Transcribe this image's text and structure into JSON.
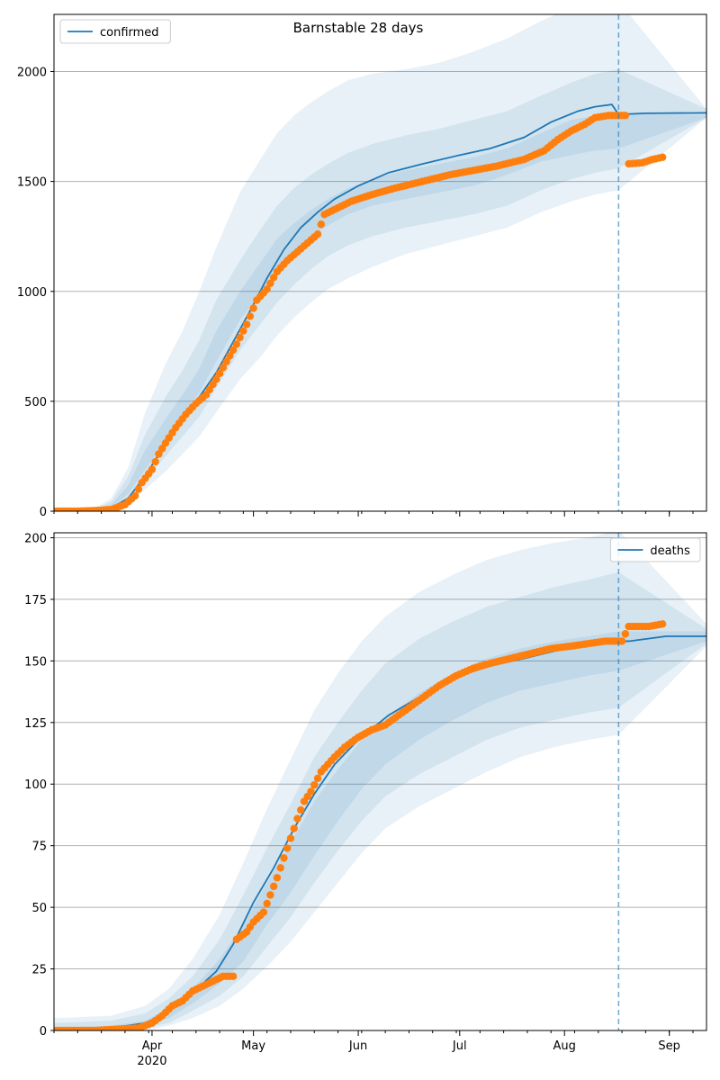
{
  "figure": {
    "title": "Barnstable 28 days"
  },
  "colors": {
    "model_line": "#1f77b4",
    "observed_points": "#ff7f0e",
    "band": "#1f77b4",
    "grid": "#b0b0b0",
    "axis": "#000000"
  },
  "x_axis": {
    "start": "2020-03-03",
    "end": "2020-09-12",
    "ticks": [
      {
        "date": "2020-04-01",
        "label": "Apr",
        "sublabel": "2020"
      },
      {
        "date": "2020-05-01",
        "label": "May",
        "sublabel": ""
      },
      {
        "date": "2020-06-01",
        "label": "Jun",
        "sublabel": ""
      },
      {
        "date": "2020-07-01",
        "label": "Jul",
        "sublabel": ""
      },
      {
        "date": "2020-08-01",
        "label": "Aug",
        "sublabel": ""
      },
      {
        "date": "2020-09-01",
        "label": "Sep",
        "sublabel": ""
      }
    ],
    "forecast_start": "2020-08-17"
  },
  "chart_data": [
    {
      "type": "line",
      "legend": {
        "label": "confirmed",
        "placement": "top-left"
      },
      "ylim": [
        0,
        2260
      ],
      "y_ticks": [
        0,
        500,
        1000,
        1500,
        2000
      ],
      "grid": true,
      "model_line": [
        [
          "2020-03-03",
          0
        ],
        [
          "2020-03-15",
          3
        ],
        [
          "2020-03-20",
          15
        ],
        [
          "2020-03-25",
          60
        ],
        [
          "2020-03-30",
          160
        ],
        [
          "2020-04-05",
          310
        ],
        [
          "2020-04-10",
          420
        ],
        [
          "2020-04-15",
          520
        ],
        [
          "2020-04-20",
          630
        ],
        [
          "2020-04-25",
          770
        ],
        [
          "2020-05-01",
          940
        ],
        [
          "2020-05-05",
          1060
        ],
        [
          "2020-05-10",
          1190
        ],
        [
          "2020-05-15",
          1290
        ],
        [
          "2020-05-20",
          1360
        ],
        [
          "2020-05-25",
          1420
        ],
        [
          "2020-06-01",
          1480
        ],
        [
          "2020-06-10",
          1540
        ],
        [
          "2020-06-20",
          1580
        ],
        [
          "2020-07-01",
          1620
        ],
        [
          "2020-07-10",
          1650
        ],
        [
          "2020-07-20",
          1700
        ],
        [
          "2020-07-28",
          1770
        ],
        [
          "2020-08-05",
          1820
        ],
        [
          "2020-08-10",
          1840
        ],
        [
          "2020-08-15",
          1850
        ],
        [
          "2020-08-17",
          1805
        ],
        [
          "2020-08-25",
          1810
        ],
        [
          "2020-09-12",
          1812
        ]
      ],
      "bands": {
        "inner": [
          [
            1,
            5,
            30,
            120,
            280,
            420,
            530,
            650,
            820,
            1000,
            1130,
            1240,
            1310,
            1370,
            1420,
            1470,
            1510,
            1550,
            1580,
            1610,
            1650,
            1720,
            1780,
            1800,
            1810,
            1800
          ],
          [
            1,
            3,
            18,
            80,
            190,
            320,
            430,
            540,
            680,
            870,
            990,
            1100,
            1180,
            1250,
            1300,
            1350,
            1390,
            1420,
            1450,
            1480,
            1530,
            1590,
            1620,
            1640,
            1650,
            1790
          ]
        ],
        "middle": [
          [
            2,
            8,
            45,
            160,
            350,
            520,
            640,
            780,
            960,
            1140,
            1280,
            1390,
            1470,
            1530,
            1580,
            1630,
            1670,
            1710,
            1740,
            1780,
            1820,
            1890,
            1950,
            1990,
            2010,
            1830
          ],
          [
            0,
            2,
            10,
            55,
            140,
            250,
            340,
            430,
            560,
            730,
            850,
            950,
            1030,
            1100,
            1160,
            1210,
            1250,
            1290,
            1320,
            1350,
            1390,
            1460,
            1510,
            1540,
            1560,
            1790
          ]
        ],
        "outer": [
          [
            3,
            12,
            60,
            200,
            450,
            670,
            820,
            1000,
            1200,
            1450,
            1600,
            1720,
            1800,
            1860,
            1910,
            1960,
            1990,
            2010,
            2040,
            2090,
            2150,
            2230,
            2290,
            2310,
            2320,
            1830
          ],
          [
            0,
            1,
            6,
            35,
            100,
            180,
            260,
            340,
            450,
            600,
            700,
            800,
            880,
            950,
            1010,
            1060,
            1110,
            1170,
            1210,
            1250,
            1290,
            1360,
            1410,
            1440,
            1460,
            1790
          ]
        ]
      },
      "band_dates": [
        "2020-03-10",
        "2020-03-15",
        "2020-03-20",
        "2020-03-25",
        "2020-03-30",
        "2020-04-05",
        "2020-04-10",
        "2020-04-15",
        "2020-04-20",
        "2020-04-27",
        "2020-05-03",
        "2020-05-08",
        "2020-05-13",
        "2020-05-18",
        "2020-05-23",
        "2020-05-29",
        "2020-06-05",
        "2020-06-15",
        "2020-06-25",
        "2020-07-05",
        "2020-07-15",
        "2020-07-25",
        "2020-08-03",
        "2020-08-10",
        "2020-08-17",
        "2020-09-12"
      ],
      "observed": [
        [
          "2020-03-03",
          0
        ],
        [
          "2020-03-10",
          0
        ],
        [
          "2020-03-15",
          3
        ],
        [
          "2020-03-20",
          8
        ],
        [
          "2020-03-24",
          30
        ],
        [
          "2020-03-27",
          70
        ],
        [
          "2020-03-29",
          130
        ],
        [
          "2020-04-01",
          190
        ],
        [
          "2020-04-03",
          260
        ],
        [
          "2020-04-05",
          310
        ],
        [
          "2020-04-08",
          380
        ],
        [
          "2020-04-11",
          440
        ],
        [
          "2020-04-14",
          490
        ],
        [
          "2020-04-17",
          530
        ],
        [
          "2020-04-20",
          600
        ],
        [
          "2020-04-23",
          680
        ],
        [
          "2020-04-26",
          760
        ],
        [
          "2020-04-29",
          850
        ],
        [
          "2020-05-02",
          960
        ],
        [
          "2020-05-05",
          1010
        ],
        [
          "2020-05-08",
          1090
        ],
        [
          "2020-05-11",
          1140
        ],
        [
          "2020-05-14",
          1180
        ],
        [
          "2020-05-17",
          1220
        ],
        [
          "2020-05-20",
          1260
        ],
        [
          "2020-05-22",
          1350
        ],
        [
          "2020-05-26",
          1380
        ],
        [
          "2020-05-30",
          1410
        ],
        [
          "2020-06-05",
          1440
        ],
        [
          "2020-06-12",
          1470
        ],
        [
          "2020-06-20",
          1500
        ],
        [
          "2020-06-28",
          1530
        ],
        [
          "2020-07-05",
          1550
        ],
        [
          "2020-07-12",
          1570
        ],
        [
          "2020-07-20",
          1600
        ],
        [
          "2020-07-26",
          1640
        ],
        [
          "2020-07-30",
          1690
        ],
        [
          "2020-08-03",
          1730
        ],
        [
          "2020-08-07",
          1760
        ],
        [
          "2020-08-10",
          1790
        ],
        [
          "2020-08-14",
          1800
        ],
        [
          "2020-08-18",
          1800
        ],
        [
          "2020-08-20",
          1580
        ],
        [
          "2020-08-24",
          1585
        ],
        [
          "2020-08-27",
          1600
        ],
        [
          "2020-08-30",
          1610
        ]
      ]
    },
    {
      "type": "line",
      "legend": {
        "label": "deaths",
        "placement": "top-right"
      },
      "ylim": [
        0,
        202
      ],
      "y_ticks": [
        0,
        25,
        50,
        75,
        100,
        125,
        150,
        175,
        200
      ],
      "grid": true,
      "model_line": [
        [
          "2020-03-03",
          0
        ],
        [
          "2020-03-20",
          1
        ],
        [
          "2020-03-30",
          3
        ],
        [
          "2020-04-05",
          7
        ],
        [
          "2020-04-12",
          14
        ],
        [
          "2020-04-20",
          24
        ],
        [
          "2020-04-25",
          35
        ],
        [
          "2020-05-01",
          52
        ],
        [
          "2020-05-07",
          66
        ],
        [
          "2020-05-13",
          82
        ],
        [
          "2020-05-19",
          96
        ],
        [
          "2020-05-25",
          108
        ],
        [
          "2020-06-01",
          118
        ],
        [
          "2020-06-10",
          128
        ],
        [
          "2020-06-20",
          136
        ],
        [
          "2020-07-01",
          144
        ],
        [
          "2020-07-10",
          148
        ],
        [
          "2020-07-20",
          151
        ],
        [
          "2020-08-01",
          155
        ],
        [
          "2020-08-10",
          157
        ],
        [
          "2020-08-17",
          158
        ],
        [
          "2020-08-20",
          158
        ],
        [
          "2020-08-31",
          160
        ],
        [
          "2020-09-12",
          160
        ]
      ],
      "bands": {
        "inner": [
          [
            1,
            2,
            4,
            9,
            17,
            29,
            43,
            60,
            76,
            93,
            106,
            118,
            127,
            137,
            145,
            151,
            155,
            158,
            160,
            162,
            162
          ],
          [
            0,
            0,
            2,
            5,
            11,
            19,
            28,
            43,
            56,
            71,
            85,
            98,
            108,
            118,
            126,
            133,
            138,
            141,
            144,
            146,
            158
          ]
        ],
        "middle": [
          [
            3,
            4,
            7,
            13,
            22,
            37,
            55,
            74,
            92,
            111,
            125,
            138,
            149,
            159,
            166,
            172,
            176,
            180,
            183,
            186,
            163
          ],
          [
            0,
            0,
            1,
            3,
            8,
            14,
            22,
            34,
            46,
            60,
            73,
            85,
            95,
            104,
            111,
            118,
            123,
            126,
            129,
            131,
            157
          ]
        ],
        "outer": [
          [
            5,
            6,
            10,
            17,
            29,
            47,
            68,
            90,
            110,
            130,
            145,
            158,
            168,
            178,
            185,
            191,
            195,
            198,
            200,
            203,
            165
          ],
          [
            0,
            0,
            0,
            2,
            5,
            10,
            17,
            26,
            36,
            48,
            60,
            72,
            82,
            91,
            98,
            105,
            111,
            115,
            118,
            120,
            156
          ]
        ]
      },
      "band_dates": [
        "2020-03-03",
        "2020-03-20",
        "2020-03-30",
        "2020-04-06",
        "2020-04-13",
        "2020-04-21",
        "2020-04-28",
        "2020-05-05",
        "2020-05-12",
        "2020-05-19",
        "2020-05-26",
        "2020-06-02",
        "2020-06-09",
        "2020-06-19",
        "2020-06-29",
        "2020-07-09",
        "2020-07-19",
        "2020-07-29",
        "2020-08-08",
        "2020-08-17",
        "2020-09-12"
      ],
      "observed": [
        [
          "2020-03-03",
          0
        ],
        [
          "2020-03-15",
          0
        ],
        [
          "2020-03-28",
          1
        ],
        [
          "2020-04-01",
          3
        ],
        [
          "2020-04-04",
          6
        ],
        [
          "2020-04-07",
          10
        ],
        [
          "2020-04-10",
          12
        ],
        [
          "2020-04-13",
          16
        ],
        [
          "2020-04-16",
          18
        ],
        [
          "2020-04-19",
          20
        ],
        [
          "2020-04-22",
          22
        ],
        [
          "2020-04-25",
          22
        ],
        [
          "2020-04-26",
          37
        ],
        [
          "2020-04-29",
          40
        ],
        [
          "2020-05-01",
          44
        ],
        [
          "2020-05-04",
          48
        ],
        [
          "2020-05-06",
          55
        ],
        [
          "2020-05-08",
          62
        ],
        [
          "2020-05-10",
          70
        ],
        [
          "2020-05-12",
          78
        ],
        [
          "2020-05-14",
          86
        ],
        [
          "2020-05-16",
          93
        ],
        [
          "2020-05-18",
          97
        ],
        [
          "2020-05-21",
          105
        ],
        [
          "2020-05-25",
          111
        ],
        [
          "2020-05-28",
          115
        ],
        [
          "2020-06-01",
          119
        ],
        [
          "2020-06-05",
          122
        ],
        [
          "2020-06-09",
          124
        ],
        [
          "2020-06-13",
          128
        ],
        [
          "2020-06-17",
          132
        ],
        [
          "2020-06-21",
          136
        ],
        [
          "2020-06-25",
          140
        ],
        [
          "2020-06-30",
          144
        ],
        [
          "2020-07-05",
          147
        ],
        [
          "2020-07-10",
          149
        ],
        [
          "2020-07-16",
          151
        ],
        [
          "2020-07-22",
          153
        ],
        [
          "2020-07-28",
          155
        ],
        [
          "2020-08-03",
          156
        ],
        [
          "2020-08-08",
          157
        ],
        [
          "2020-08-13",
          158
        ],
        [
          "2020-08-18",
          158
        ],
        [
          "2020-08-20",
          164
        ],
        [
          "2020-08-26",
          164
        ],
        [
          "2020-08-30",
          165
        ]
      ]
    }
  ]
}
